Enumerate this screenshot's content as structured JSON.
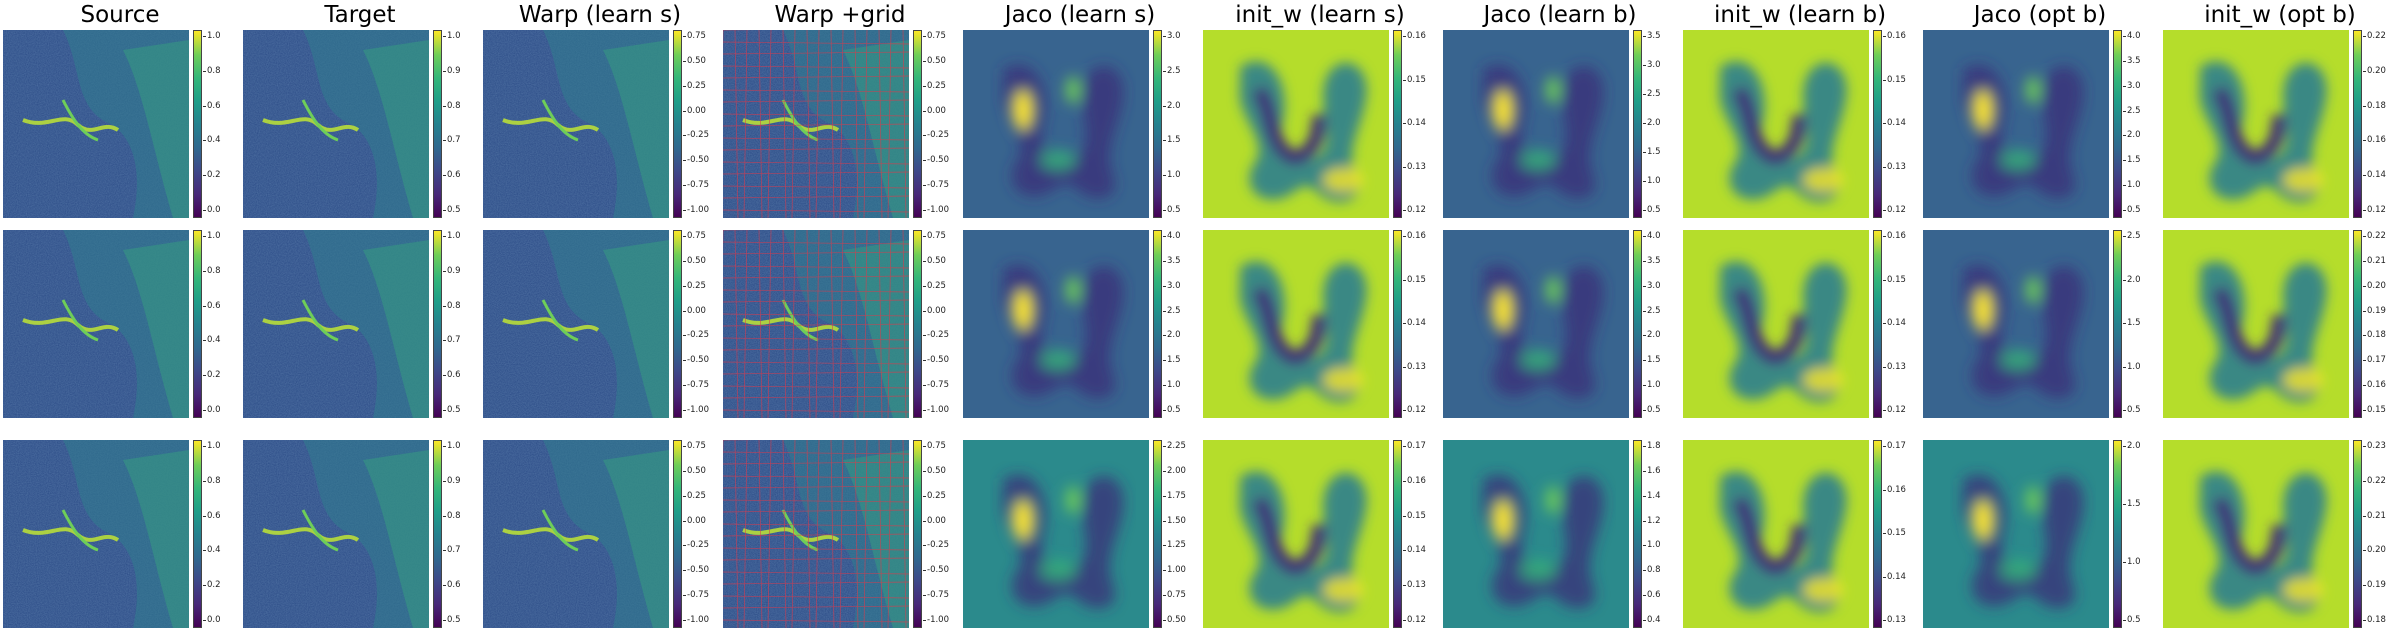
{
  "columns": [
    {
      "title": "Source",
      "kind": "mri"
    },
    {
      "title": "Target",
      "kind": "mri"
    },
    {
      "title": "Warp (learn s)",
      "kind": "mri"
    },
    {
      "title": "Warp +grid",
      "kind": "grid"
    },
    {
      "title": "Jaco  (learn s)",
      "kind": "jaco"
    },
    {
      "title": "init_w (learn s)",
      "kind": "initw"
    },
    {
      "title": "Jaco  (learn b)",
      "kind": "jaco"
    },
    {
      "title": "init_w (learn b)",
      "kind": "initw"
    },
    {
      "title": "Jaco  (opt b)",
      "kind": "jaco"
    },
    {
      "title": "init_w (opt b)",
      "kind": "initw"
    }
  ],
  "rows": [
    [
      [
        "1.0",
        "0.8",
        "0.6",
        "0.4",
        "0.2",
        "0.0"
      ],
      [
        "1.0",
        "0.9",
        "0.8",
        "0.7",
        "0.6",
        "0.5"
      ],
      [
        "0.75",
        "0.50",
        "0.25",
        "0.00",
        "-0.25",
        "-0.50",
        "-0.75",
        "-1.00"
      ],
      [
        "0.75",
        "0.50",
        "0.25",
        "0.00",
        "-0.25",
        "-0.50",
        "-0.75",
        "-1.00"
      ],
      [
        "3.0",
        "2.5",
        "2.0",
        "1.5",
        "1.0",
        "0.5"
      ],
      [
        "0.16",
        "0.15",
        "0.14",
        "0.13",
        "0.12"
      ],
      [
        "3.5",
        "3.0",
        "2.5",
        "2.0",
        "1.5",
        "1.0",
        "0.5"
      ],
      [
        "0.16",
        "0.15",
        "0.14",
        "0.13",
        "0.12"
      ],
      [
        "4.0",
        "3.5",
        "3.0",
        "2.5",
        "2.0",
        "1.5",
        "1.0",
        "0.5"
      ],
      [
        "0.22",
        "0.20",
        "0.18",
        "0.16",
        "0.14",
        "0.12"
      ]
    ],
    [
      [
        "1.0",
        "0.8",
        "0.6",
        "0.4",
        "0.2",
        "0.0"
      ],
      [
        "1.0",
        "0.9",
        "0.8",
        "0.7",
        "0.6",
        "0.5"
      ],
      [
        "0.75",
        "0.50",
        "0.25",
        "0.00",
        "-0.25",
        "-0.50",
        "-0.75",
        "-1.00"
      ],
      [
        "0.75",
        "0.50",
        "0.25",
        "0.00",
        "-0.25",
        "-0.50",
        "-0.75",
        "-1.00"
      ],
      [
        "4.0",
        "3.5",
        "3.0",
        "2.5",
        "2.0",
        "1.5",
        "1.0",
        "0.5"
      ],
      [
        "0.16",
        "0.15",
        "0.14",
        "0.13",
        "0.12"
      ],
      [
        "4.0",
        "3.5",
        "3.0",
        "2.5",
        "2.0",
        "1.5",
        "1.0",
        "0.5"
      ],
      [
        "0.16",
        "0.15",
        "0.14",
        "0.13",
        "0.12"
      ],
      [
        "2.5",
        "2.0",
        "1.5",
        "1.0",
        "0.5"
      ],
      [
        "0.22",
        "0.21",
        "0.20",
        "0.19",
        "0.18",
        "0.17",
        "0.16",
        "0.15"
      ]
    ],
    [
      [
        "1.0",
        "0.8",
        "0.6",
        "0.4",
        "0.2",
        "0.0"
      ],
      [
        "1.0",
        "0.9",
        "0.8",
        "0.7",
        "0.6",
        "0.5"
      ],
      [
        "0.75",
        "0.50",
        "0.25",
        "0.00",
        "-0.25",
        "-0.50",
        "-0.75",
        "-1.00"
      ],
      [
        "0.75",
        "0.50",
        "0.25",
        "0.00",
        "-0.25",
        "-0.50",
        "-0.75",
        "-1.00"
      ],
      [
        "2.25",
        "2.00",
        "1.75",
        "1.50",
        "1.25",
        "1.00",
        "0.75",
        "0.50"
      ],
      [
        "0.17",
        "0.16",
        "0.15",
        "0.14",
        "0.13",
        "0.12"
      ],
      [
        "1.8",
        "1.6",
        "1.4",
        "1.2",
        "1.0",
        "0.8",
        "0.6",
        "0.4"
      ],
      [
        "0.17",
        "0.16",
        "0.15",
        "0.14",
        "0.13"
      ],
      [
        "2.0",
        "1.5",
        "1.0",
        "0.5"
      ],
      [
        "0.23",
        "0.22",
        "0.21",
        "0.20",
        "0.19",
        "0.18"
      ]
    ]
  ]
}
